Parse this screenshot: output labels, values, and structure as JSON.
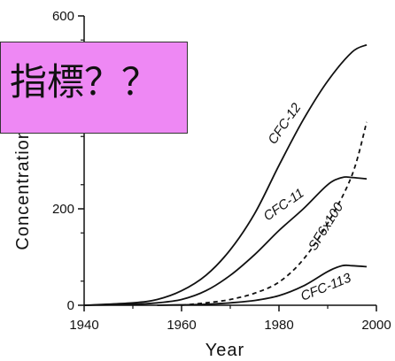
{
  "chart_data": {
    "type": "line",
    "xlabel": "Year",
    "ylabel": "Concentration (pptv)",
    "xlim": [
      1940,
      2000
    ],
    "ylim": [
      0,
      600
    ],
    "x_ticks": [
      1940,
      1960,
      1980,
      2000
    ],
    "y_ticks": [
      0,
      200,
      400,
      600
    ],
    "grid": false,
    "series": [
      {
        "name": "CFC-12",
        "style": "solid",
        "x": [
          1940,
          1950,
          1955,
          1960,
          1965,
          1970,
          1975,
          1980,
          1985,
          1990,
          1995,
          1998
        ],
        "y": [
          0,
          5,
          12,
          30,
          62,
          115,
          190,
          290,
          385,
          465,
          525,
          540
        ]
      },
      {
        "name": "CFC-11",
        "style": "solid",
        "x": [
          1940,
          1950,
          1955,
          1960,
          1965,
          1970,
          1975,
          1980,
          1985,
          1990,
          1993,
          1995,
          1998
        ],
        "y": [
          0,
          2,
          5,
          12,
          30,
          62,
          105,
          155,
          200,
          250,
          265,
          265,
          262
        ]
      },
      {
        "name": "SF6x100",
        "style": "dashed",
        "x": [
          1960,
          1965,
          1970,
          1975,
          1980,
          1985,
          1990,
          1995,
          1998
        ],
        "y": [
          0,
          5,
          12,
          25,
          48,
          95,
          170,
          270,
          380
        ]
      },
      {
        "name": "CFC-113",
        "style": "solid",
        "x": [
          1955,
          1960,
          1965,
          1970,
          1975,
          1980,
          1985,
          1990,
          1993,
          1995,
          1998
        ],
        "y": [
          0,
          1,
          2,
          5,
          10,
          20,
          40,
          70,
          82,
          82,
          80
        ]
      }
    ]
  },
  "overlay": {
    "text": "指標？？",
    "color": "#ee88f4"
  }
}
